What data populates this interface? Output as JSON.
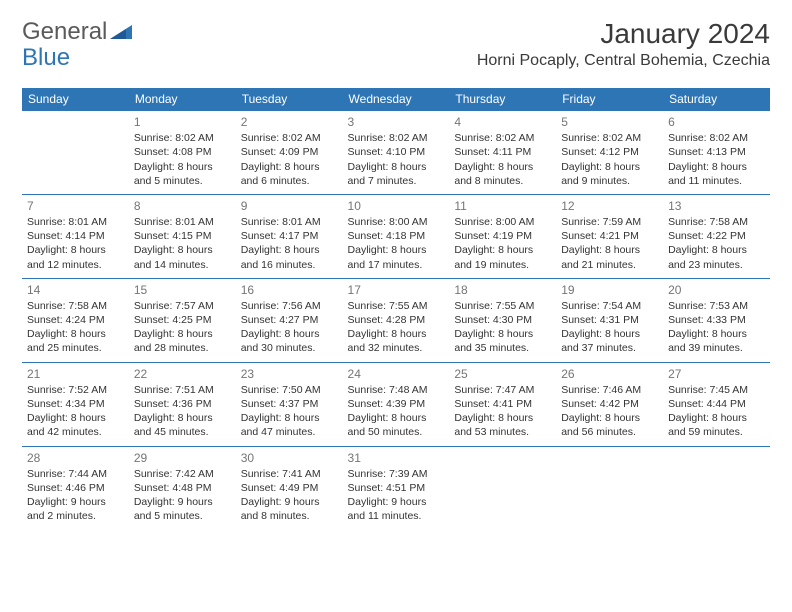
{
  "brand": {
    "word1": "General",
    "word2": "Blue"
  },
  "title": "January 2024",
  "location": "Horni Pocaply, Central Bohemia, Czechia",
  "colors": {
    "header_bg": "#2e75b6",
    "header_text": "#ffffff",
    "row_border": "#2e75b6",
    "daynum_color": "#757575",
    "text_color": "#333333",
    "logo_gray": "#5a5a5a",
    "logo_blue": "#2e75b6",
    "background": "#ffffff"
  },
  "day_headers": [
    "Sunday",
    "Monday",
    "Tuesday",
    "Wednesday",
    "Thursday",
    "Friday",
    "Saturday"
  ],
  "weeks": [
    [
      null,
      {
        "n": "1",
        "sr": "Sunrise: 8:02 AM",
        "ss": "Sunset: 4:08 PM",
        "d1": "Daylight: 8 hours",
        "d2": "and 5 minutes."
      },
      {
        "n": "2",
        "sr": "Sunrise: 8:02 AM",
        "ss": "Sunset: 4:09 PM",
        "d1": "Daylight: 8 hours",
        "d2": "and 6 minutes."
      },
      {
        "n": "3",
        "sr": "Sunrise: 8:02 AM",
        "ss": "Sunset: 4:10 PM",
        "d1": "Daylight: 8 hours",
        "d2": "and 7 minutes."
      },
      {
        "n": "4",
        "sr": "Sunrise: 8:02 AM",
        "ss": "Sunset: 4:11 PM",
        "d1": "Daylight: 8 hours",
        "d2": "and 8 minutes."
      },
      {
        "n": "5",
        "sr": "Sunrise: 8:02 AM",
        "ss": "Sunset: 4:12 PM",
        "d1": "Daylight: 8 hours",
        "d2": "and 9 minutes."
      },
      {
        "n": "6",
        "sr": "Sunrise: 8:02 AM",
        "ss": "Sunset: 4:13 PM",
        "d1": "Daylight: 8 hours",
        "d2": "and 11 minutes."
      }
    ],
    [
      {
        "n": "7",
        "sr": "Sunrise: 8:01 AM",
        "ss": "Sunset: 4:14 PM",
        "d1": "Daylight: 8 hours",
        "d2": "and 12 minutes."
      },
      {
        "n": "8",
        "sr": "Sunrise: 8:01 AM",
        "ss": "Sunset: 4:15 PM",
        "d1": "Daylight: 8 hours",
        "d2": "and 14 minutes."
      },
      {
        "n": "9",
        "sr": "Sunrise: 8:01 AM",
        "ss": "Sunset: 4:17 PM",
        "d1": "Daylight: 8 hours",
        "d2": "and 16 minutes."
      },
      {
        "n": "10",
        "sr": "Sunrise: 8:00 AM",
        "ss": "Sunset: 4:18 PM",
        "d1": "Daylight: 8 hours",
        "d2": "and 17 minutes."
      },
      {
        "n": "11",
        "sr": "Sunrise: 8:00 AM",
        "ss": "Sunset: 4:19 PM",
        "d1": "Daylight: 8 hours",
        "d2": "and 19 minutes."
      },
      {
        "n": "12",
        "sr": "Sunrise: 7:59 AM",
        "ss": "Sunset: 4:21 PM",
        "d1": "Daylight: 8 hours",
        "d2": "and 21 minutes."
      },
      {
        "n": "13",
        "sr": "Sunrise: 7:58 AM",
        "ss": "Sunset: 4:22 PM",
        "d1": "Daylight: 8 hours",
        "d2": "and 23 minutes."
      }
    ],
    [
      {
        "n": "14",
        "sr": "Sunrise: 7:58 AM",
        "ss": "Sunset: 4:24 PM",
        "d1": "Daylight: 8 hours",
        "d2": "and 25 minutes."
      },
      {
        "n": "15",
        "sr": "Sunrise: 7:57 AM",
        "ss": "Sunset: 4:25 PM",
        "d1": "Daylight: 8 hours",
        "d2": "and 28 minutes."
      },
      {
        "n": "16",
        "sr": "Sunrise: 7:56 AM",
        "ss": "Sunset: 4:27 PM",
        "d1": "Daylight: 8 hours",
        "d2": "and 30 minutes."
      },
      {
        "n": "17",
        "sr": "Sunrise: 7:55 AM",
        "ss": "Sunset: 4:28 PM",
        "d1": "Daylight: 8 hours",
        "d2": "and 32 minutes."
      },
      {
        "n": "18",
        "sr": "Sunrise: 7:55 AM",
        "ss": "Sunset: 4:30 PM",
        "d1": "Daylight: 8 hours",
        "d2": "and 35 minutes."
      },
      {
        "n": "19",
        "sr": "Sunrise: 7:54 AM",
        "ss": "Sunset: 4:31 PM",
        "d1": "Daylight: 8 hours",
        "d2": "and 37 minutes."
      },
      {
        "n": "20",
        "sr": "Sunrise: 7:53 AM",
        "ss": "Sunset: 4:33 PM",
        "d1": "Daylight: 8 hours",
        "d2": "and 39 minutes."
      }
    ],
    [
      {
        "n": "21",
        "sr": "Sunrise: 7:52 AM",
        "ss": "Sunset: 4:34 PM",
        "d1": "Daylight: 8 hours",
        "d2": "and 42 minutes."
      },
      {
        "n": "22",
        "sr": "Sunrise: 7:51 AM",
        "ss": "Sunset: 4:36 PM",
        "d1": "Daylight: 8 hours",
        "d2": "and 45 minutes."
      },
      {
        "n": "23",
        "sr": "Sunrise: 7:50 AM",
        "ss": "Sunset: 4:37 PM",
        "d1": "Daylight: 8 hours",
        "d2": "and 47 minutes."
      },
      {
        "n": "24",
        "sr": "Sunrise: 7:48 AM",
        "ss": "Sunset: 4:39 PM",
        "d1": "Daylight: 8 hours",
        "d2": "and 50 minutes."
      },
      {
        "n": "25",
        "sr": "Sunrise: 7:47 AM",
        "ss": "Sunset: 4:41 PM",
        "d1": "Daylight: 8 hours",
        "d2": "and 53 minutes."
      },
      {
        "n": "26",
        "sr": "Sunrise: 7:46 AM",
        "ss": "Sunset: 4:42 PM",
        "d1": "Daylight: 8 hours",
        "d2": "and 56 minutes."
      },
      {
        "n": "27",
        "sr": "Sunrise: 7:45 AM",
        "ss": "Sunset: 4:44 PM",
        "d1": "Daylight: 8 hours",
        "d2": "and 59 minutes."
      }
    ],
    [
      {
        "n": "28",
        "sr": "Sunrise: 7:44 AM",
        "ss": "Sunset: 4:46 PM",
        "d1": "Daylight: 9 hours",
        "d2": "and 2 minutes."
      },
      {
        "n": "29",
        "sr": "Sunrise: 7:42 AM",
        "ss": "Sunset: 4:48 PM",
        "d1": "Daylight: 9 hours",
        "d2": "and 5 minutes."
      },
      {
        "n": "30",
        "sr": "Sunrise: 7:41 AM",
        "ss": "Sunset: 4:49 PM",
        "d1": "Daylight: 9 hours",
        "d2": "and 8 minutes."
      },
      {
        "n": "31",
        "sr": "Sunrise: 7:39 AM",
        "ss": "Sunset: 4:51 PM",
        "d1": "Daylight: 9 hours",
        "d2": "and 11 minutes."
      },
      null,
      null,
      null
    ]
  ]
}
